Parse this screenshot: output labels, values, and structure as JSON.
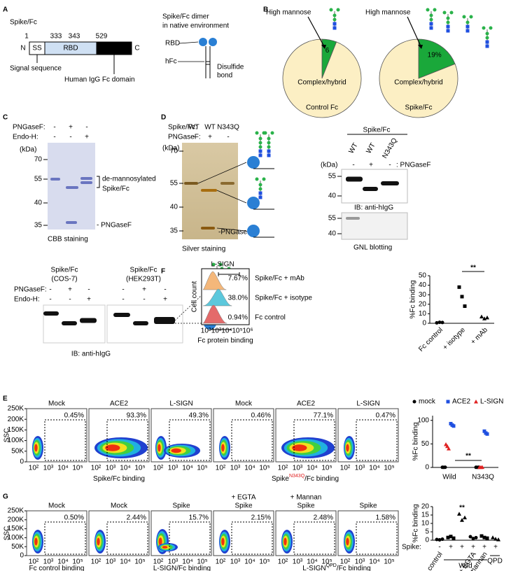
{
  "figure": {
    "panel_labels": [
      "A",
      "B",
      "C",
      "D",
      "E",
      "F",
      "G"
    ],
    "a": {
      "construct": "Spike/Fc",
      "positions": [
        1,
        333,
        343,
        529
      ],
      "domains": [
        "N",
        "SS",
        "RBD",
        "hFc",
        "C"
      ],
      "signal_sequence": "Signal sequence",
      "fc_domain": "Human IgG Fc domain",
      "dimer_title": [
        "Spike/Fc dimer",
        "in native environment"
      ],
      "rbd": "RBD",
      "hfc": "hFc",
      "disulfide": [
        "Disulfide",
        "bond"
      ]
    },
    "c": {
      "treatments": [
        "PNGaseF:",
        "Endo-H:"
      ],
      "signs": [
        [
          "-",
          "+",
          "-"
        ],
        [
          "-",
          "-",
          "+"
        ]
      ],
      "kda": "(kDa)",
      "markers": [
        70,
        55,
        40,
        35
      ],
      "band_label": [
        "de-mannosylated",
        "Spike/Fc"
      ],
      "enzyme_band": "- PNGaseF",
      "caption": "CBB staining"
    },
    "d": {
      "sample_label": "Spike/Fc:",
      "lanes": [
        "WT",
        "WT",
        "N343Q"
      ],
      "treatment": "PNGaseF:",
      "signs": [
        "-",
        "+",
        "-"
      ],
      "kda": "(kDa)",
      "markers": [
        70,
        55,
        40,
        35
      ],
      "enzyme_band": "-PNGaseF",
      "caption": "Silver staining",
      "blot": {
        "header": "Spike/Fc",
        "lanes": [
          "WT",
          "WT",
          "N343Q"
        ],
        "kda": "(kDa)",
        "signs": [
          "-",
          "+",
          "-"
        ],
        "treatment": ": PNGaseF",
        "markers": [
          55,
          40
        ],
        "ib": "IB: anti-hIgG",
        "markers2": [
          55,
          40
        ],
        "caption": "GNL blotting"
      },
      "cells": {
        "headers": [
          [
            "Spike/Fc",
            "(COS-7)"
          ],
          [
            "Spike/Fc",
            "(HEK293T)"
          ]
        ],
        "treatments": [
          "PNGaseF:",
          "Endo-H:"
        ],
        "signs": [
          [
            "-",
            "+",
            "-"
          ],
          [
            "-",
            "-",
            "+"
          ]
        ],
        "ib": "IB: anti-hIgG"
      }
    },
    "e": {
      "titles": [
        "Mock",
        "ACE2",
        "L-SIGN",
        "Mock",
        "ACE2",
        "L-SIGN"
      ],
      "percents": [
        "0.45%",
        "93.3%",
        "49.3%",
        "0.46%",
        "77.1%",
        "0.47%"
      ],
      "ylabel": "SSC",
      "yticks": [
        "0",
        "50K",
        "100K",
        "150K",
        "200K",
        "250K"
      ],
      "xticks": [
        "10²",
        "10³",
        "10⁴",
        "10⁵"
      ],
      "xlabels": [
        [
          "Spike/Fc binding"
        ],
        [
          "Spike",
          "N343Q",
          "/Fc binding"
        ]
      ]
    },
    "f": {
      "title": "L-SIGN",
      "ylabel": "Cell count",
      "rows": [
        "Spike/Fc + mAb",
        "Spike/Fc + isotype",
        "Fc control"
      ],
      "percents": [
        "7.67%",
        "38.0%",
        "0.94%"
      ],
      "xticks": [
        "10²",
        "10³",
        "10⁴",
        "10⁵",
        "10⁶"
      ],
      "xlabel": "Fc protein binding"
    },
    "g": {
      "treatments": [
        "+ EGTA",
        "+ Mannan"
      ],
      "titles": [
        "Mock",
        "Mock",
        "Spike",
        "Spike",
        "Spike",
        "Spike"
      ],
      "percents": [
        "0.50%",
        "2.44%",
        "15.7%",
        "2.15%",
        "2.48%",
        "1.58%"
      ],
      "ylabel": "SSC",
      "yticks": [
        "0",
        "50K",
        "100K",
        "150K",
        "200K",
        "250K"
      ],
      "xticks": [
        "10²",
        "10³",
        "10⁴",
        "10⁵"
      ],
      "xlabels": [
        [
          "Fc control binding"
        ],
        [
          "L-SIGN/Fc binding"
        ],
        [
          "L-SIGN",
          "QPD",
          "/Fc binding"
        ]
      ]
    }
  },
  "chart_data": [
    {
      "type": "pie",
      "title": "Control Fc",
      "categories": [
        "High mannose",
        "Complex/hybrid"
      ],
      "values": [
        6,
        94
      ],
      "colors": [
        "#1aa83a",
        "#fcefc4"
      ]
    },
    {
      "type": "pie",
      "title": "Spike/Fc",
      "categories": [
        "High mannose",
        "Complex/hybrid"
      ],
      "values": [
        19,
        81
      ],
      "value_labels": [
        "19%",
        null
      ],
      "colors": [
        "#1aa83a",
        "#fcefc4"
      ]
    },
    {
      "type": "dot",
      "ylabel": "%Fc binding",
      "categories": [
        "Fc control",
        "+ isotype",
        "+ mAb"
      ],
      "markers": [
        "circle",
        "square",
        "triangle"
      ],
      "values": [
        [
          0.5,
          1,
          0.8
        ],
        [
          38,
          28,
          18
        ],
        [
          7,
          5,
          6
        ]
      ],
      "color": "#000000",
      "ylim": [
        0,
        50
      ],
      "yticks": [
        0,
        10,
        20,
        30,
        40,
        50
      ],
      "annotation": "**"
    },
    {
      "type": "dot",
      "ylabel": "%Fc binding",
      "categories": [
        "Wild",
        "N343Q"
      ],
      "series": [
        {
          "name": "mock",
          "color": "#000000",
          "marker": "circle",
          "values": [
            [
              0.3,
              0.2,
              0.4
            ],
            [
              0.3,
              0.2,
              0.3
            ]
          ]
        },
        {
          "name": "ACE2",
          "color": "#1f4fe0",
          "marker": "square",
          "values": [
            [
              93,
              90,
              88
            ],
            [
              77,
              73,
              71
            ]
          ]
        },
        {
          "name": "L-SIGN",
          "color": "#e02020",
          "marker": "triangle",
          "values": [
            [
              49,
              45,
              40
            ],
            [
              0.5,
              0.4,
              0.6
            ]
          ]
        }
      ],
      "ylim": [
        0,
        110
      ],
      "yticks": [
        0,
        50,
        100
      ],
      "annotation": "**"
    },
    {
      "type": "dot",
      "ylabel": "%Fc binding",
      "categories": [
        "Fc control",
        null,
        null,
        "+ EGTA",
        "+ mannan",
        null
      ],
      "markers": [
        "circle",
        "square",
        "triangle",
        "circle",
        "square",
        "triangle"
      ],
      "values": [
        [
          0.4,
          0.2,
          0.6
        ],
        [
          1.6,
          2.2,
          1.2
        ],
        [
          15.7,
          12,
          13.5
        ],
        [
          2.1,
          1,
          1.5
        ],
        [
          2.5,
          1.6,
          1.2
        ],
        [
          1.6,
          0.8,
          0.4
        ]
      ],
      "color": "#000000",
      "ylim": [
        0,
        20
      ],
      "yticks": [
        0,
        5,
        10,
        15,
        20
      ],
      "annotation": "**",
      "x_row_label": "Spike:",
      "x_row": [
        "-",
        "+",
        "+",
        "+",
        "+",
        "+"
      ],
      "group_labels": [
        "Wild",
        "QPD"
      ]
    }
  ]
}
